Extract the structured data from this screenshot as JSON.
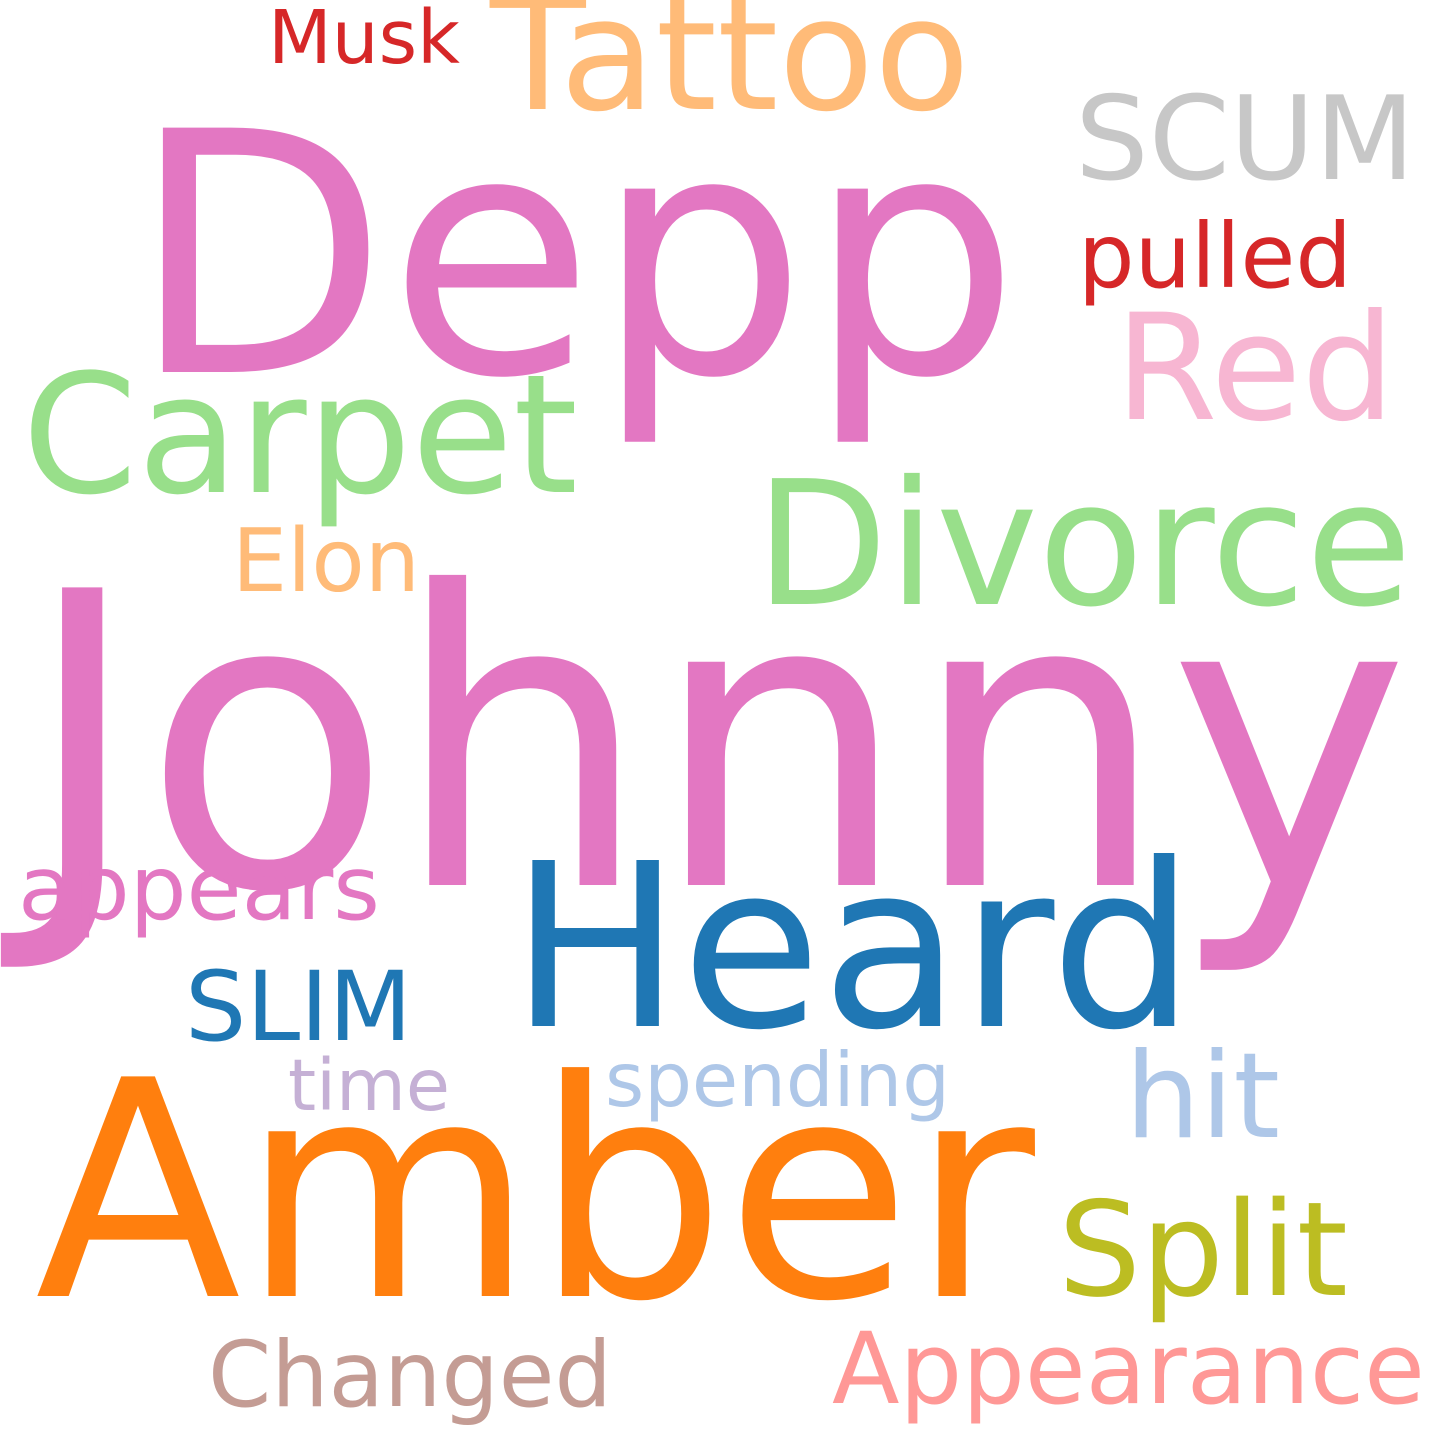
{
  "words": [
    {
      "text": "Johnny",
      "color": "#e377c2"
    },
    {
      "text": "Depp",
      "color": "#e377c2"
    },
    {
      "text": "Amber",
      "color": "#ff7f0e"
    },
    {
      "text": "Heard",
      "color": "#1f77b4"
    },
    {
      "text": "Tattoo",
      "color": "#ffbb78"
    },
    {
      "text": "SCUM",
      "color": "#c7c7c7"
    },
    {
      "text": "Carpet",
      "color": "#98df8a"
    },
    {
      "text": "Red",
      "color": "#f7b6d2"
    },
    {
      "text": "Divorce",
      "color": "#98df8a"
    },
    {
      "text": "Musk",
      "color": "#d62728"
    },
    {
      "text": "pulled",
      "color": "#d62728"
    },
    {
      "text": "Elon",
      "color": "#ffbb78"
    },
    {
      "text": "appears",
      "color": "#e377c2"
    },
    {
      "text": "SLIM",
      "color": "#1f77b4"
    },
    {
      "text": "time",
      "color": "#c5b0d5"
    },
    {
      "text": "spending",
      "color": "#aec7e8"
    },
    {
      "text": "hit",
      "color": "#aec7e8"
    },
    {
      "text": "Split",
      "color": "#bcbd22"
    },
    {
      "text": "Changed",
      "color": "#c49c94"
    },
    {
      "text": "Appearance",
      "color": "#ff9896"
    }
  ]
}
